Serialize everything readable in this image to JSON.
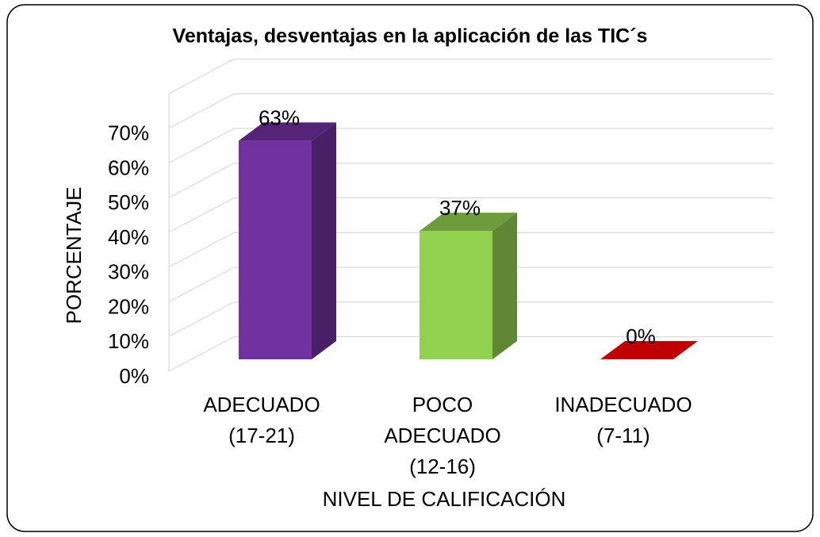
{
  "chart_data": {
    "type": "bar3d",
    "title": "Ventajas, desventajas en la aplicación de las TIC´s",
    "y_label": "PORCENTAJE",
    "x_label": "NIVEL DE CALIFICACIÓN",
    "categories": [
      [
        "ADECUADO",
        "(17-21)"
      ],
      [
        "POCO",
        "ADECUADO",
        "(12-16)"
      ],
      [
        "INADECUADO",
        "(7-11)"
      ]
    ],
    "values": [
      63,
      37,
      0
    ],
    "value_labels": [
      "63%",
      "37%",
      "0%"
    ],
    "colors": [
      "#7030a0",
      "#92d050",
      "#c00000"
    ],
    "ylim": [
      0,
      80
    ],
    "yticks": [
      {
        "value": 0,
        "label": "0%"
      },
      {
        "value": 10,
        "label": "10%"
      },
      {
        "value": 20,
        "label": "20%"
      },
      {
        "value": 30,
        "label": "30%"
      },
      {
        "value": 40,
        "label": "40%"
      },
      {
        "value": 50,
        "label": "50%"
      },
      {
        "value": 60,
        "label": "60%"
      },
      {
        "value": 70,
        "label": "70%"
      }
    ],
    "grid": true
  }
}
